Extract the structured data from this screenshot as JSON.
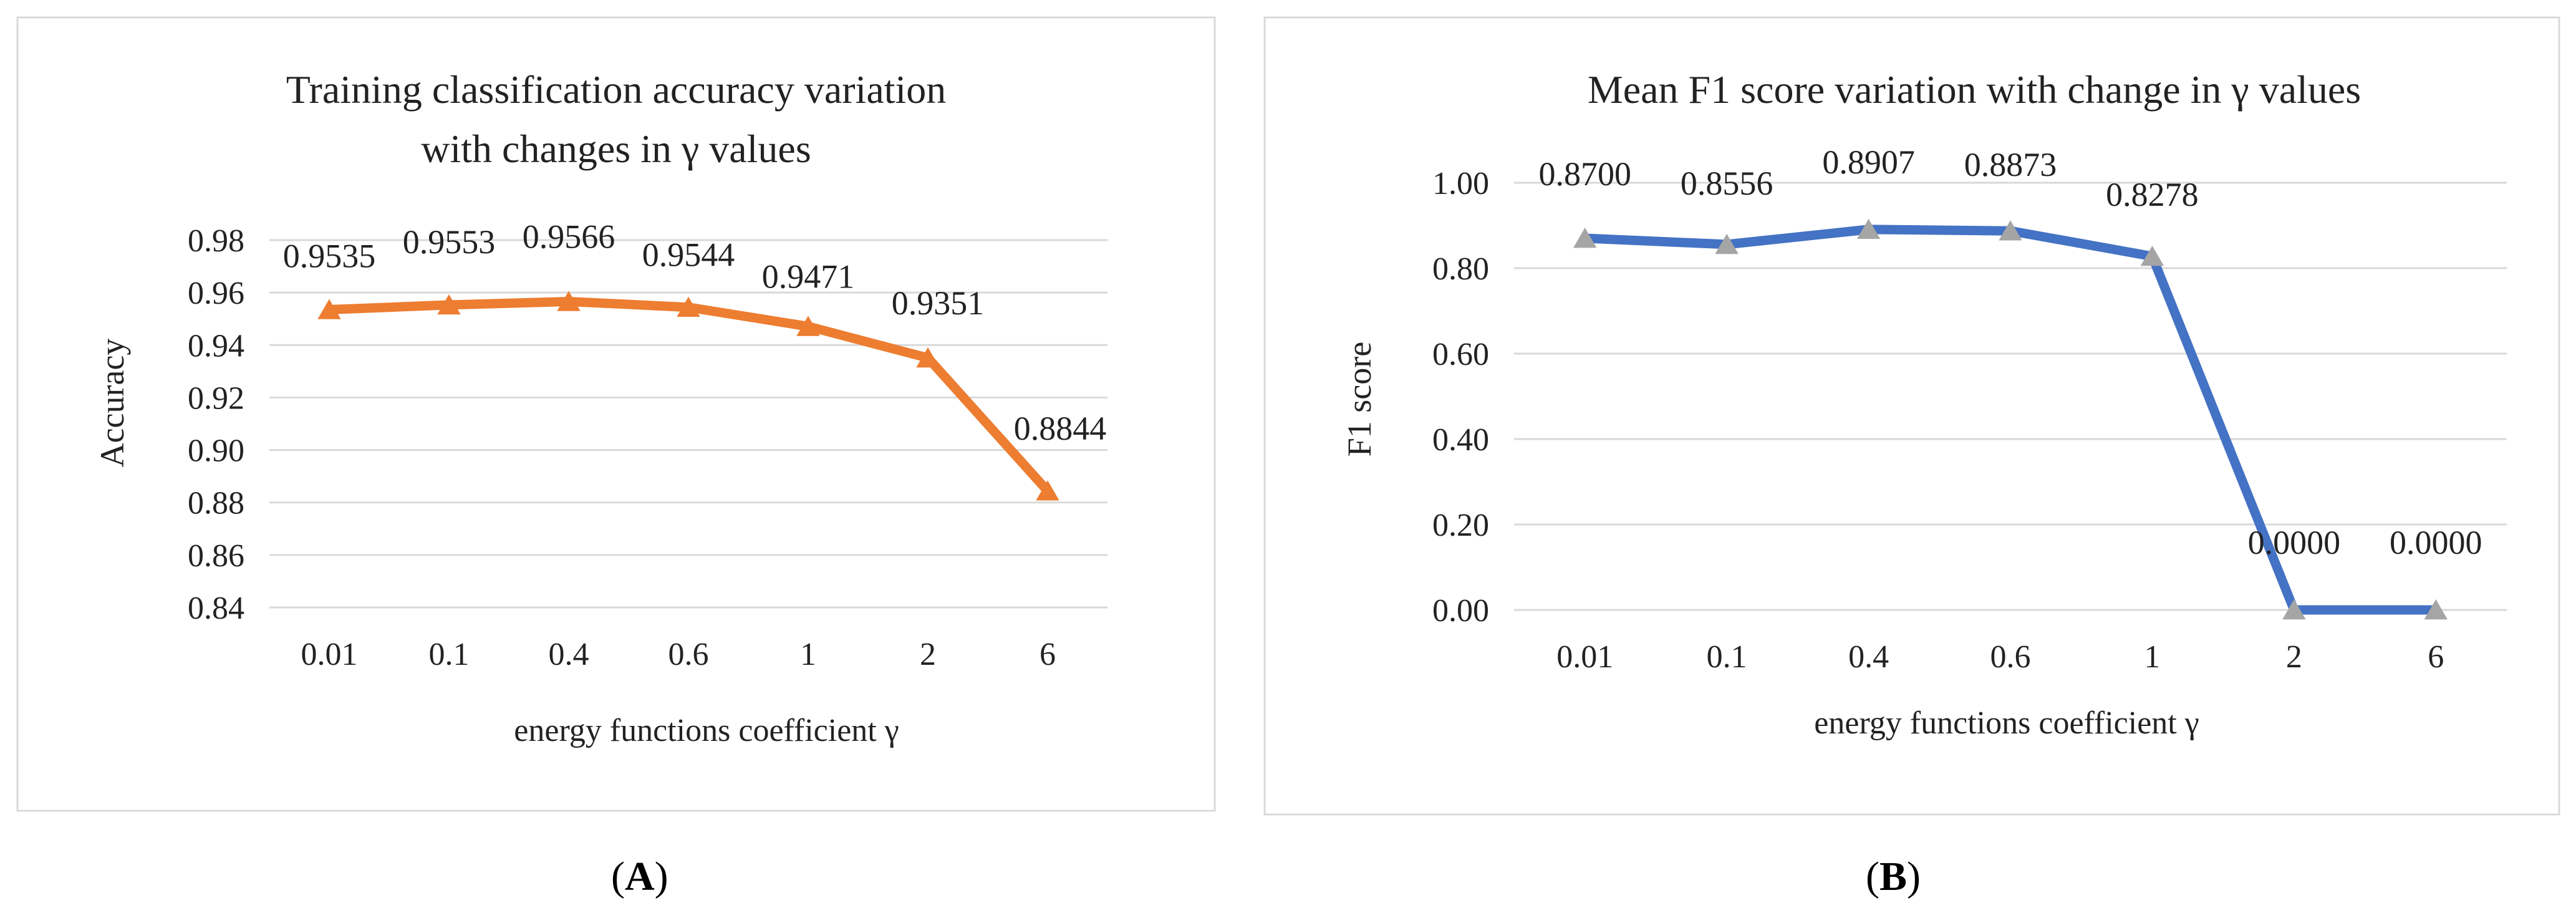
{
  "figure": {
    "captions": {
      "a_open": "(",
      "a_letter": "A",
      "a_close": ")",
      "b_open": "(",
      "b_letter": "B",
      "b_close": ")"
    }
  },
  "chart_data": [
    {
      "id": "A",
      "type": "line",
      "title_lines": [
        "Training classification accuracy variation",
        "with changes in γ values"
      ],
      "xlabel": "energy functions coefficient γ",
      "ylabel": "Accuracy",
      "categories": [
        "0.01",
        "0.1",
        "0.4",
        "0.6",
        "1",
        "2",
        "6"
      ],
      "series": [
        {
          "name": "Accuracy",
          "values": [
            0.9535,
            0.9553,
            0.9566,
            0.9544,
            0.9471,
            0.9351,
            0.8844
          ],
          "labels": [
            "0.9535",
            "0.9553",
            "0.9566",
            "0.9544",
            "0.9471",
            "0.9351",
            "0.8844"
          ],
          "color": "#ED7D31",
          "marker": "triangle"
        }
      ],
      "ylim": [
        0.84,
        0.98
      ],
      "yticks": [
        "0.84",
        "0.86",
        "0.88",
        "0.90",
        "0.92",
        "0.94",
        "0.96",
        "0.98"
      ],
      "grid": true
    },
    {
      "id": "B",
      "type": "line",
      "title_lines": [
        "Mean F1 score variation with change in γ values"
      ],
      "xlabel": "energy functions coefficient γ",
      "ylabel": "F1 score",
      "categories": [
        "0.01",
        "0.1",
        "0.4",
        "0.6",
        "1",
        "2",
        "6"
      ],
      "series": [
        {
          "name": "F1 score",
          "values": [
            0.87,
            0.8556,
            0.8907,
            0.8873,
            0.8278,
            0.0,
            0.0
          ],
          "labels": [
            "0.8700",
            "0.8556",
            "0.8907",
            "0.8873",
            "0.8278",
            "0.0000",
            "0.0000"
          ],
          "color": "#4472C4",
          "marker": "triangle",
          "marker_color": "#A5A5A5"
        }
      ],
      "ylim": [
        0.0,
        1.0
      ],
      "yticks": [
        "0.00",
        "0.20",
        "0.40",
        "0.60",
        "0.80",
        "1.00"
      ],
      "grid": true
    }
  ]
}
